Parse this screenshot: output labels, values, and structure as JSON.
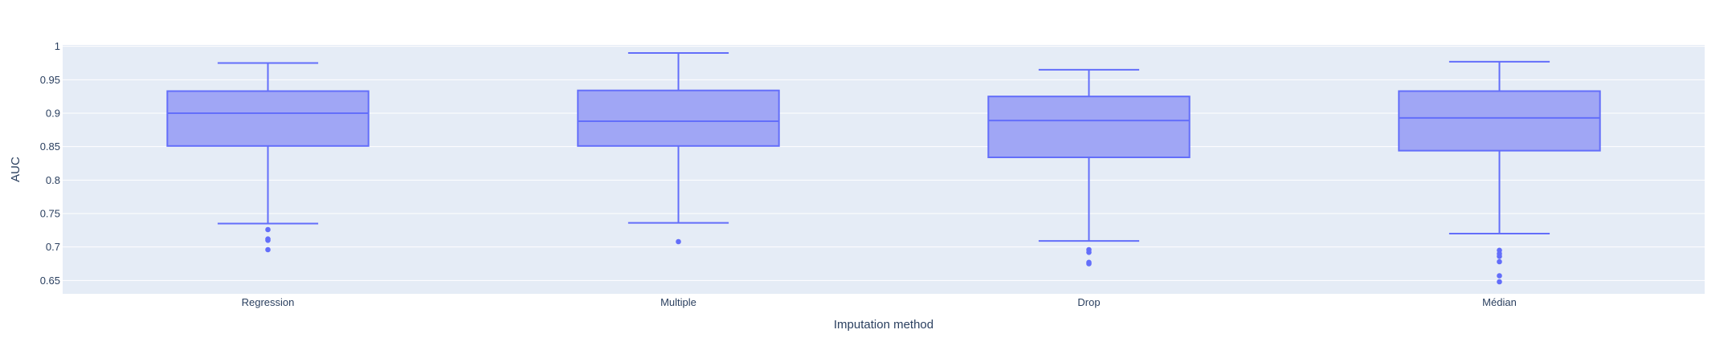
{
  "chart_data": {
    "type": "box",
    "xlabel": "Imputation method",
    "ylabel": "AUC",
    "ylim": [
      0.63,
      1.002
    ],
    "yticks": [
      0.65,
      0.7,
      0.75,
      0.8,
      0.85,
      0.9,
      0.95,
      1
    ],
    "ytick_labels": [
      "0.65",
      "0.7",
      "0.75",
      "0.8",
      "0.85",
      "0.9",
      "0.95",
      "1"
    ],
    "grid": true,
    "colors": {
      "plot_bg": "#e5ecf6",
      "grid": "#ffffff",
      "box_fill": "#a0a6f5",
      "box_line": "#636efa",
      "text": "#2a3f5f"
    },
    "categories": [
      "Regression",
      "Multiple",
      "Drop",
      "Médian"
    ],
    "boxes": [
      {
        "category": "Regression",
        "whisker_low": 0.735,
        "q1": 0.851,
        "median": 0.9,
        "q3": 0.933,
        "whisker_high": 0.975,
        "outliers": [
          0.726,
          0.712,
          0.71,
          0.696
        ]
      },
      {
        "category": "Multiple",
        "whisker_low": 0.736,
        "q1": 0.851,
        "median": 0.888,
        "q3": 0.934,
        "whisker_high": 0.99,
        "outliers": [
          0.708
        ]
      },
      {
        "category": "Drop",
        "whisker_low": 0.709,
        "q1": 0.834,
        "median": 0.889,
        "q3": 0.925,
        "whisker_high": 0.965,
        "outliers": [
          0.696,
          0.692,
          0.677,
          0.675
        ]
      },
      {
        "category": "Médian",
        "whisker_low": 0.72,
        "q1": 0.844,
        "median": 0.893,
        "q3": 0.933,
        "whisker_high": 0.977,
        "outliers": [
          0.695,
          0.69,
          0.686,
          0.678,
          0.657,
          0.648
        ]
      }
    ]
  }
}
